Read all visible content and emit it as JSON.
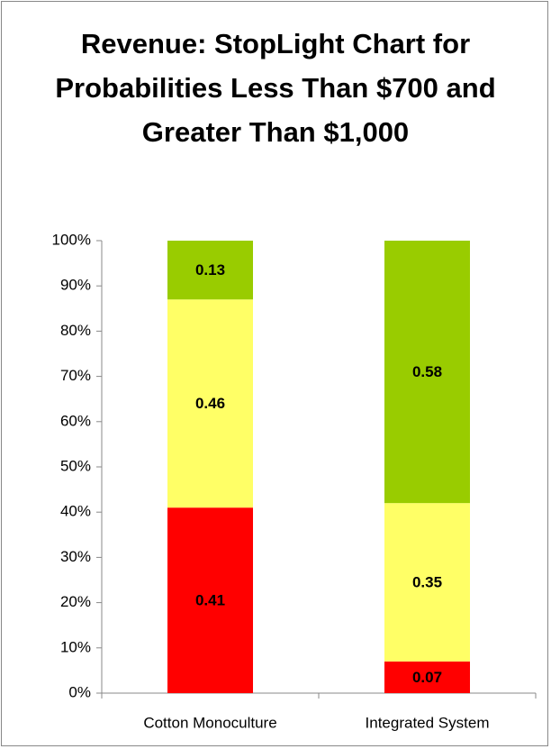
{
  "chart_data": {
    "type": "stacked_bar",
    "title": "Revenue: StopLight Chart for Probabilities Less Than $700 and Greater Than $1,000",
    "categories": [
      "Cotton Monoculture",
      "Integrated System"
    ],
    "series": [
      {
        "color": "#ff0000",
        "values": [
          41,
          7
        ],
        "value_labels": [
          "0.41",
          "0.07"
        ]
      },
      {
        "color": "#ffff66",
        "values": [
          46,
          35
        ],
        "value_labels": [
          "0.46",
          "0.35"
        ]
      },
      {
        "color": "#99cc00",
        "values": [
          13,
          58
        ],
        "value_labels": [
          "0.13",
          "0.58"
        ]
      }
    ],
    "ylim": [
      0,
      100
    ],
    "yticks": [
      {
        "value": 0,
        "label": "0%"
      },
      {
        "value": 10,
        "label": "10%"
      },
      {
        "value": 20,
        "label": "20%"
      },
      {
        "value": 30,
        "label": "30%"
      },
      {
        "value": 40,
        "label": "40%"
      },
      {
        "value": 50,
        "label": "50%"
      },
      {
        "value": 60,
        "label": "60%"
      },
      {
        "value": 70,
        "label": "70%"
      },
      {
        "value": 80,
        "label": "80%"
      },
      {
        "value": 90,
        "label": "90%"
      },
      {
        "value": 100,
        "label": "100%"
      }
    ],
    "grid": false
  }
}
